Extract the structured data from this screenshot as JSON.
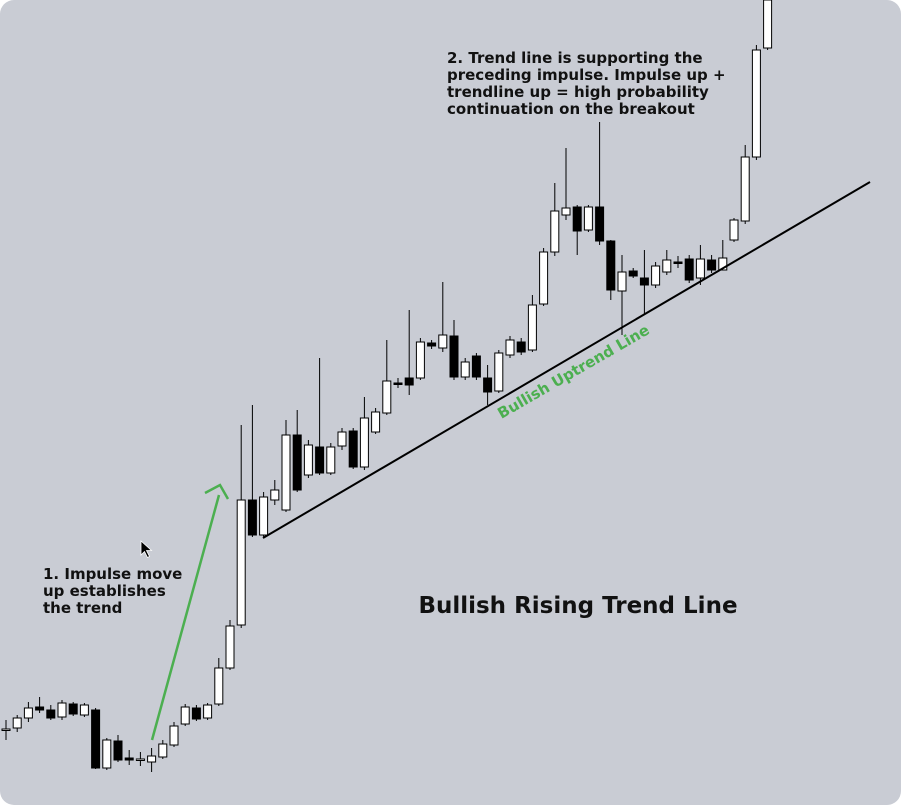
{
  "chart_data": {
    "type": "candlestick",
    "title": "Bullish Rising Trend Line",
    "annotations": [
      [
        "1. Impulse move",
        "up establishes",
        "the trend"
      ],
      [
        "2. Trend line is supporting the",
        "preceding impulse. Impulse up +",
        "trendline up = high probability",
        "continuation on the breakout"
      ]
    ],
    "trendline_label": "Bullish Uptrend Line",
    "up_color": "#ffffff",
    "down_color": "#000000",
    "ylim": [
      0,
      805
    ],
    "open": [
      75,
      77,
      87,
      98,
      95,
      88,
      101,
      90,
      95,
      37,
      64,
      47,
      45,
      43,
      48,
      60,
      81,
      97,
      87,
      101,
      137,
      180,
      305,
      270,
      305,
      295,
      370,
      330,
      358,
      332,
      359,
      374,
      338,
      373,
      392,
      422,
      427,
      427,
      462,
      457,
      469,
      428,
      449,
      427,
      414,
      450,
      463,
      455,
      501,
      553,
      590,
      598,
      575,
      598,
      564,
      514,
      534,
      527,
      520,
      533,
      543,
      546,
      527,
      545,
      535,
      565,
      584,
      648,
      757
    ],
    "high": [
      85,
      90,
      103,
      108,
      100,
      105,
      103,
      102,
      97,
      67,
      70,
      55,
      53,
      57,
      65,
      83,
      101,
      100,
      102,
      147,
      185,
      380,
      400,
      313,
      325,
      385,
      395,
      365,
      447,
      362,
      377,
      377,
      408,
      397,
      465,
      427,
      495,
      467,
      465,
      523,
      485,
      447,
      452,
      440,
      455,
      469,
      467,
      510,
      557,
      622,
      657,
      600,
      600,
      683,
      565,
      550,
      537,
      555,
      543,
      555,
      549,
      550,
      560,
      550,
      565,
      587,
      660,
      760,
      805
    ],
    "low": [
      65,
      73,
      83,
      92,
      85,
      85,
      89,
      88,
      36,
      35,
      43,
      40,
      39,
      33,
      46,
      58,
      79,
      84,
      85,
      99,
      135,
      177,
      268,
      267,
      300,
      293,
      313,
      327,
      330,
      330,
      355,
      336,
      335,
      371,
      390,
      417,
      410,
      425,
      456,
      453,
      425,
      425,
      425,
      400,
      412,
      447,
      450,
      453,
      499,
      549,
      585,
      550,
      573,
      560,
      505,
      470,
      527,
      490,
      517,
      530,
      537,
      522,
      520,
      532,
      535,
      563,
      581,
      645,
      755
    ],
    "close": [
      76,
      87,
      97,
      95,
      87,
      102,
      91,
      100,
      37,
      65,
      45,
      45,
      46,
      49,
      61,
      79,
      98,
      86,
      100,
      137,
      179,
      305,
      270,
      308,
      315,
      370,
      315,
      360,
      332,
      358,
      373,
      338,
      387,
      393,
      424,
      421,
      420,
      463,
      459,
      470,
      428,
      443,
      428,
      413,
      452,
      465,
      453,
      500,
      553,
      594,
      597,
      574,
      598,
      564,
      515,
      533,
      529,
      520,
      539,
      545,
      542,
      525,
      546,
      535,
      547,
      585,
      648,
      755,
      805
    ]
  }
}
